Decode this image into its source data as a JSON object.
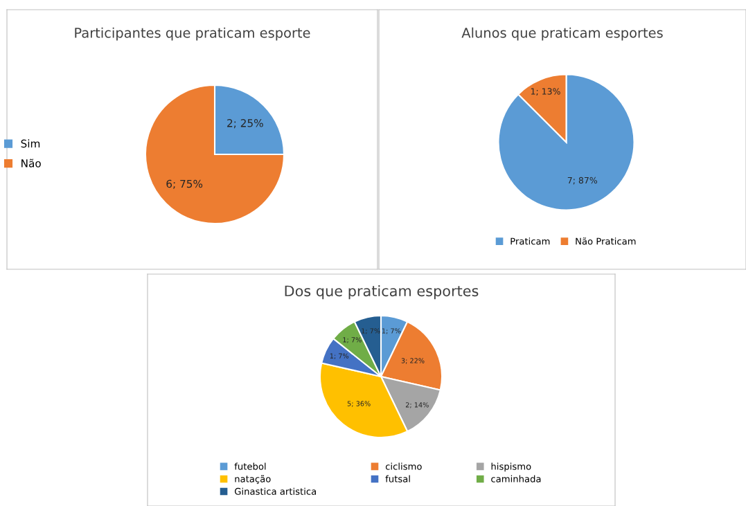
{
  "chart_data": [
    {
      "type": "pie",
      "title": "Participantes que praticam esporte",
      "categories": [
        "Sim",
        "Não"
      ],
      "values": [
        2,
        6
      ],
      "colors": [
        "#5b9bd5",
        "#ed7d31"
      ],
      "value_labels": [
        "2; 25%",
        "6; 75%"
      ],
      "legend": "left"
    },
    {
      "type": "pie",
      "title": "Alunos que praticam esportes",
      "categories": [
        "Praticam",
        "Não Praticam"
      ],
      "values": [
        7,
        1
      ],
      "colors": [
        "#5b9bd5",
        "#ed7d31"
      ],
      "value_labels": [
        "7; 87%",
        "1; 13%"
      ],
      "legend": "bottom"
    },
    {
      "type": "pie",
      "title": "Dos que praticam esportes",
      "categories": [
        "futebol",
        "ciclismo",
        "hispismo",
        "natação",
        "futsal",
        "caminhada",
        "Ginastica artistica"
      ],
      "values": [
        1,
        3,
        2,
        5,
        1,
        1,
        1
      ],
      "colors": [
        "#5b9bd5",
        "#ed7d31",
        "#a5a5a5",
        "#ffc000",
        "#4472c4",
        "#70ad47",
        "#255e91"
      ],
      "value_labels": [
        "1; 7%",
        "3; 22%",
        "2; 14%",
        "5; 36%",
        "1; 7%",
        "1; 7%",
        "1; 7%"
      ],
      "legend": "bottom"
    }
  ]
}
